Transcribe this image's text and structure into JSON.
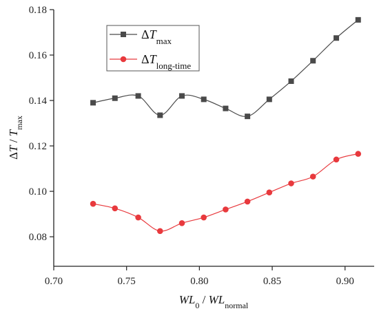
{
  "chart_data": {
    "type": "line",
    "x": [
      0.727,
      0.742,
      0.758,
      0.773,
      0.788,
      0.803,
      0.818,
      0.833,
      0.848,
      0.863,
      0.878,
      0.894,
      0.909
    ],
    "series": [
      {
        "name": "ΔT_max",
        "values": [
          0.139,
          0.141,
          0.142,
          0.1335,
          0.142,
          0.1405,
          0.1365,
          0.133,
          0.1405,
          0.1485,
          0.1575,
          0.1675,
          0.1755
        ],
        "color": "#4a4a4a",
        "marker": "square"
      },
      {
        "name": "ΔT_long-time",
        "values": [
          0.0945,
          0.0925,
          0.0885,
          0.0825,
          0.086,
          0.0885,
          0.092,
          0.0955,
          0.0995,
          0.1035,
          0.1065,
          0.114,
          0.1165
        ],
        "color": "#e8393d",
        "marker": "circle"
      }
    ],
    "xlim": [
      0.7,
      0.92
    ],
    "ylim": [
      0.067,
      0.18
    ],
    "xticks": [
      "0.70",
      "0.75",
      "0.80",
      "0.85",
      "0.90"
    ],
    "yticks": [
      "0.08",
      "0.10",
      "0.12",
      "0.14",
      "0.16",
      "0.18"
    ],
    "xlabel": {
      "main": "WL",
      "sub0": "0",
      "sep": " / ",
      "main2": "WL",
      "sub1": "normal"
    },
    "ylabel": {
      "delta": "Δ",
      "t1": "T",
      "sep": " / ",
      "t2": "T",
      "sub": "max"
    },
    "legend": {
      "position": "top-left",
      "items": [
        {
          "delta": "Δ",
          "t": "T",
          "sub": "max"
        },
        {
          "delta": "Δ",
          "t": "T",
          "sub": "long-time"
        }
      ]
    },
    "grid": false
  }
}
